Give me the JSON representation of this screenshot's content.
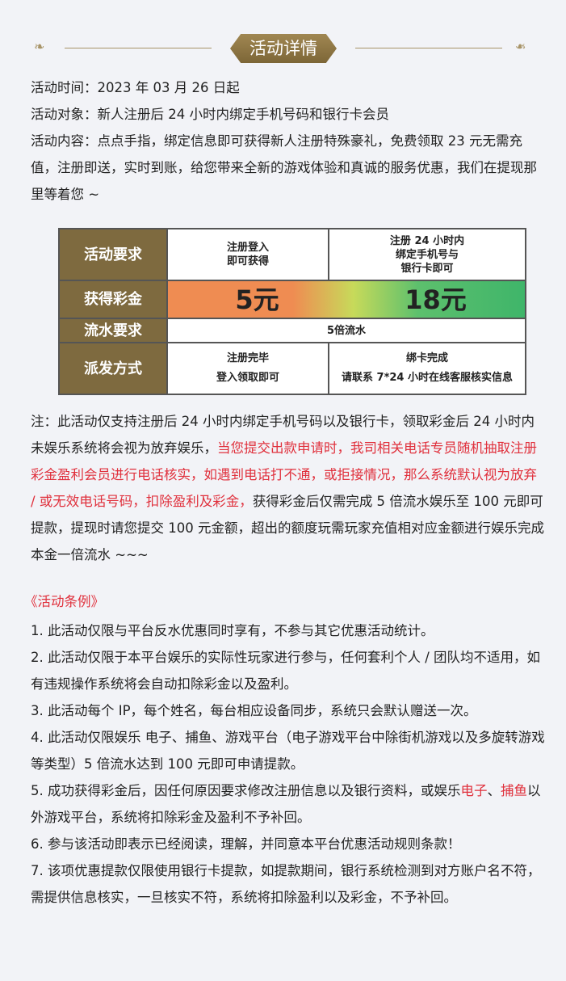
{
  "header": {
    "title": "活动详情"
  },
  "intro": [
    "活动时间：2023 年 03 月 26 日起",
    "活动对象：新人注册后 24 小时内绑定手机号码和银行卡会员",
    "活动内容：点点手指，绑定信息即可获得新人注册特殊豪礼，免费领取 23 元无需充值，注册即送，实时到账，给您带来全新的游戏体验和真诚的服务优惠，我们在提现那里等着您 ~"
  ],
  "table": {
    "rows": [
      {
        "label": "活动要求",
        "c1": "注册登入\n即可获得",
        "c2": "注册 24 小时内\n绑定手机号与\n银行卡即可"
      },
      {
        "label": "获得彩金",
        "c1": "5元",
        "c2": "18元"
      },
      {
        "label": "流水要求",
        "c1": "5倍流水"
      },
      {
        "label": "派发方式",
        "c1": "注册完毕\n登入领取即可",
        "c2": "绑卡完成\n请联系 7*24 小时在线客服核实信息"
      }
    ]
  },
  "note": {
    "part1": "注：此活动仅支持注册后 24 小时内绑定手机号码以及银行卡，领取彩金后 24 小时内未娱乐系统将会视为放弃娱乐，",
    "part2_red": "当您提交出款申请时，我司相关电话专员随机抽取注册彩金盈利会员进行电话核实，如遇到电话打不通，或拒接情况，那么系统默认视为放弃 / 或无效电话号码，扣除盈利及彩金，",
    "part3": "获得彩金后仅需完成 5 倍流水娱乐至 100 元即可提款，提现时请您提交 100 元金额，超出的额度玩需玩家充值相对应金额进行娱乐完成本金一倍流水 ~~~"
  },
  "rules_title": "《活动条例》",
  "rules": {
    "r1": "1. 此活动仅限与平台反水优惠同时享有，不参与其它优惠活动统计。",
    "r2": "2. 此活动仅限于本平台娱乐的实际性玩家进行参与，任何套利个人 / 团队均不适用，如有违规操作系统将会自动扣除彩金以及盈利。",
    "r3": "3. 此活动每个 IP，每个姓名，每台相应设备同步，系统只会默认赠送一次。",
    "r4": "4. 此活动仅限娱乐 电子、捕鱼、游戏平台（电子游戏平台中除街机游戏以及多旋转游戏等类型）5 倍流水达到 100 元即可申请提款。",
    "r5a": "5. 成功获得彩金后，因任何原因要求修改注册信息以及银行资料，或娱乐",
    "r5b": "电子",
    "r5c": "、",
    "r5d": "捕鱼",
    "r5e": "以外游戏平台，系统将扣除彩金及盈利不予补回。",
    "r6": "6. 参与该活动即表示已经阅读，理解，并同意本平台优惠活动规则条款！",
    "r7": "7. 该项优惠提款仅限使用银行卡提款，如提款期间，银行系统检测到对方账户名不符，需提供信息核实，一旦核实不符，系统将扣除盈利以及彩金，不予补回。"
  },
  "colors": {
    "gold": "#7e6a3f",
    "red": "#e0303c",
    "orange": "#ef8c52",
    "green": "#3fb56a"
  }
}
